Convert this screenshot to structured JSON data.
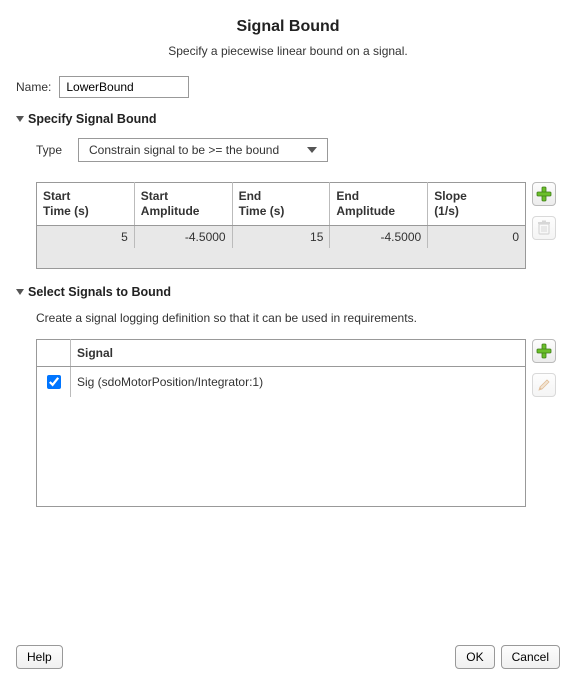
{
  "dialog": {
    "title": "Signal Bound",
    "subtitle": "Specify a piecewise linear bound on a signal."
  },
  "name_field": {
    "label": "Name:",
    "value": "LowerBound"
  },
  "specify_section": {
    "title": "Specify Signal Bound",
    "type_label": "Type",
    "type_selected": "Constrain signal to be >= the bound",
    "table": {
      "columns": [
        "Start\nTime (s)",
        "Start\nAmplitude",
        "End\nTime (s)",
        "End\nAmplitude",
        "Slope\n(1/s)"
      ],
      "rows": [
        [
          "5",
          "-4.5000",
          "15",
          "-4.5000",
          "0"
        ]
      ]
    }
  },
  "select_section": {
    "title": "Select Signals to Bound",
    "helper": "Create a signal logging definition so that it can be used in requirements.",
    "table": {
      "signal_header": "Signal",
      "rows": [
        {
          "checked": true,
          "label": "Sig (sdoMotorPosition/Integrator:1)"
        }
      ]
    }
  },
  "buttons": {
    "help": "Help",
    "ok": "OK",
    "cancel": "Cancel"
  },
  "icons": {
    "add_color": "#6bbf2a",
    "add_border": "#3e7d17",
    "trash_color": "#b8b8b8",
    "pencil_color": "#c98b4a"
  }
}
